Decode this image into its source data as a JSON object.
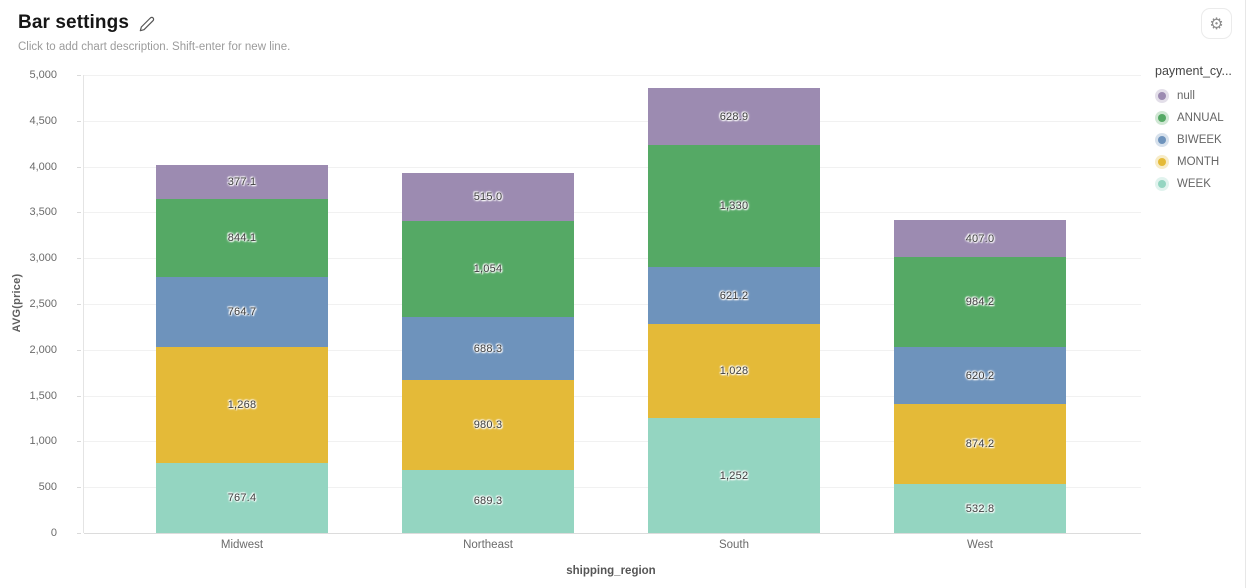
{
  "header": {
    "title": "Bar settings",
    "description": "Click to add chart description. Shift-enter for new line.",
    "edit_icon": "pencil-icon",
    "settings_icon": "gear-icon",
    "settings_glyph": "⚙"
  },
  "chart_data": {
    "type": "bar",
    "stacked": true,
    "orientation": "vertical",
    "categories": [
      "Midwest",
      "Northeast",
      "South",
      "West"
    ],
    "series": [
      {
        "name": "WEEK",
        "color": "#94d5c1",
        "values": [
          767.4,
          689.3,
          1252,
          532.8
        ],
        "labels": [
          "767.4",
          "689.3",
          "1,252",
          "532.8"
        ]
      },
      {
        "name": "MONTH",
        "color": "#e4ba38",
        "values": [
          1268,
          980.3,
          1028,
          874.2
        ],
        "labels": [
          "1,268",
          "980.3",
          "1,028",
          "874.2"
        ]
      },
      {
        "name": "BIWEEK",
        "color": "#6e93bc",
        "values": [
          764.7,
          688.3,
          621.2,
          620.2
        ],
        "labels": [
          "764.7",
          "688.3",
          "621.2",
          "620.2"
        ]
      },
      {
        "name": "ANNUAL",
        "color": "#55a965",
        "values": [
          844.1,
          1054,
          1330,
          984.2
        ],
        "labels": [
          "844.1",
          "1,054",
          "1,330",
          "984.2"
        ]
      },
      {
        "name": "null",
        "color": "#9c8bb1",
        "values": [
          377.1,
          515.0,
          628.9,
          407.0
        ],
        "labels": [
          "377.1",
          "515.0",
          "628.9",
          "407.0"
        ]
      }
    ],
    "legend": {
      "title": "payment_cy...",
      "position": "right",
      "items_order": [
        "null",
        "ANNUAL",
        "BIWEEK",
        "MONTH",
        "WEEK"
      ]
    },
    "xlabel": "shipping_region",
    "ylabel": "AVG(price)",
    "ylim": [
      0,
      5000
    ],
    "ytick_step": 500,
    "grid": true,
    "colors": {
      "gridline": "#f1f1f1",
      "axis_line": "#dcdcdc",
      "tick_text": "#6b6b6b"
    }
  }
}
